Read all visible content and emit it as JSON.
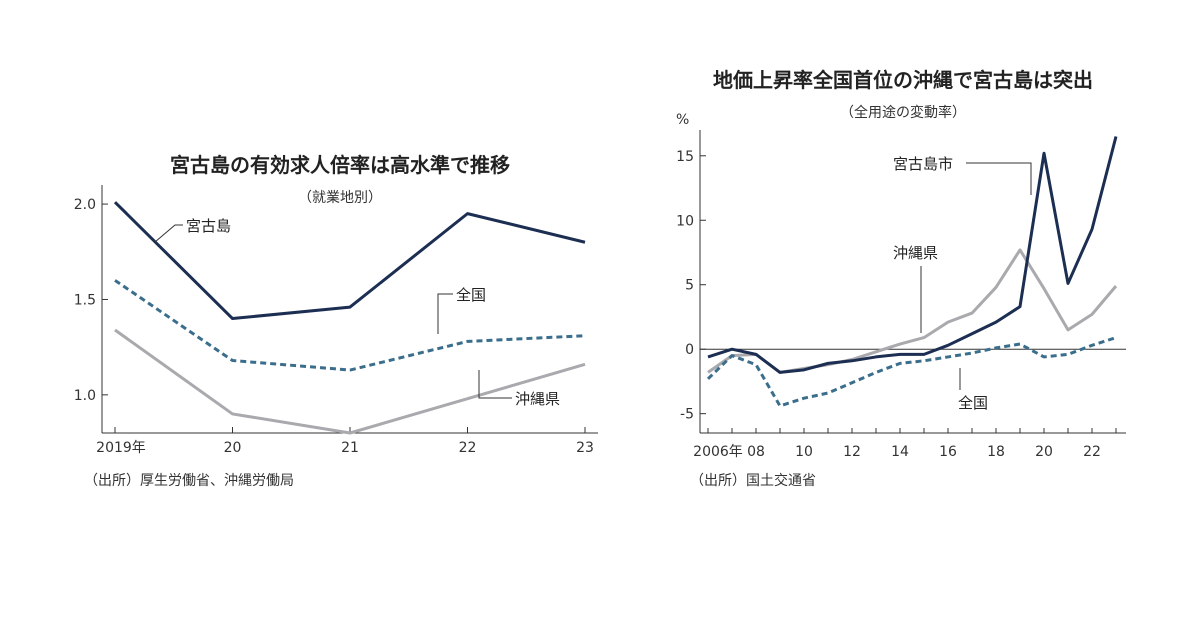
{
  "chart_data": [
    {
      "type": "line",
      "title": "宮古島の有効求人倍率は高水準で推移",
      "subtitle": "（就業地別）",
      "source": "（出所）厚生労働省、沖縄労働局",
      "categories": [
        "2019年",
        "20",
        "21",
        "22",
        "23"
      ],
      "ylim": [
        0.8,
        2.1
      ],
      "yticks": [
        "2.0",
        "1.5",
        "1.0"
      ],
      "ytick_values": [
        2.0,
        1.5,
        1.0
      ],
      "series": [
        {
          "name": "宮古島",
          "color": "#1c2e52",
          "style": "solid",
          "values": [
            2.01,
            1.4,
            1.46,
            1.95,
            1.8
          ]
        },
        {
          "name": "全国",
          "color": "#3a6e8c",
          "style": "dashed",
          "values": [
            1.6,
            1.18,
            1.13,
            1.28,
            1.31
          ]
        },
        {
          "name": "沖縄県",
          "color": "#a9a9ae",
          "style": "solid",
          "values": [
            1.34,
            0.9,
            0.8,
            0.98,
            1.16
          ]
        }
      ]
    },
    {
      "type": "line",
      "title": "地価上昇率全国首位の沖縄で宮古島は突出",
      "subtitle": "（全用途の変動率）",
      "unit": "%",
      "source": "（出所）国土交通省",
      "x": [
        2006,
        2007,
        2008,
        2009,
        2010,
        2011,
        2012,
        2013,
        2014,
        2015,
        2016,
        2017,
        2018,
        2019,
        2020,
        2021,
        2022,
        2023
      ],
      "xticks": [
        "2006年",
        "08",
        "10",
        "12",
        "14",
        "16",
        "18",
        "20",
        "22"
      ],
      "xtick_values": [
        2006,
        2008,
        2010,
        2012,
        2014,
        2016,
        2018,
        2020,
        2022
      ],
      "ylim": [
        -6.5,
        17
      ],
      "yticks": [
        "15",
        "10",
        "5",
        "0",
        "-5"
      ],
      "ytick_values": [
        15,
        10,
        5,
        0,
        -5
      ],
      "series": [
        {
          "name": "宮古島市",
          "color": "#1c2e52",
          "style": "solid",
          "values": [
            -0.6,
            0.0,
            -0.4,
            -1.8,
            -1.6,
            -1.1,
            -0.9,
            -0.6,
            -0.4,
            -0.4,
            0.3,
            1.2,
            2.1,
            3.3,
            15.2,
            5.1,
            9.3,
            16.5
          ]
        },
        {
          "name": "沖縄県",
          "color": "#a9a9ae",
          "style": "solid",
          "values": [
            -1.8,
            -0.5,
            -0.4,
            -1.8,
            -1.5,
            -1.2,
            -0.8,
            -0.2,
            0.4,
            0.9,
            2.1,
            2.8,
            4.8,
            7.7,
            4.7,
            1.5,
            2.7,
            4.9
          ]
        },
        {
          "name": "全国",
          "color": "#3a6e8c",
          "style": "dashed",
          "values": [
            -2.3,
            -0.5,
            -1.2,
            -4.4,
            -3.8,
            -3.4,
            -2.6,
            -1.8,
            -1.1,
            -0.9,
            -0.6,
            -0.3,
            0.1,
            0.4,
            -0.6,
            -0.4,
            0.3,
            0.9
          ]
        }
      ]
    }
  ]
}
